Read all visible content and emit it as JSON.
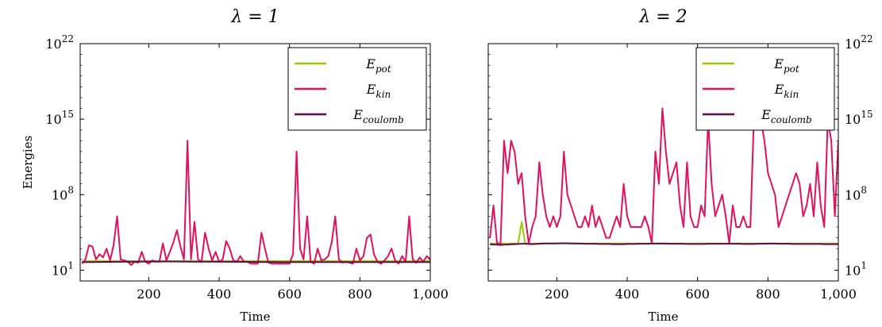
{
  "chart_data": [
    {
      "type": "line",
      "title": "λ = 1",
      "xlabel": "Time",
      "ylabel": "Energies",
      "yscale": "log",
      "xlim": [
        5,
        1000
      ],
      "ylim": [
        1,
        1e+22
      ],
      "x_ticks": [
        200,
        400,
        600,
        800,
        1000
      ],
      "x_tick_labels": [
        "200",
        "400",
        "600",
        "800",
        "1,000"
      ],
      "y_ticks": [
        10,
        100000000.0,
        1000000000000000.0,
        1e+22
      ],
      "y_tick_labels": [
        {
          "base": "10",
          "exp": "1"
        },
        {
          "base": "10",
          "exp": "8"
        },
        {
          "base": "10",
          "exp": "15"
        },
        {
          "base": "10",
          "exp": "22"
        }
      ],
      "y_axis_side": "left",
      "legend": "top-right",
      "x": [
        10,
        20,
        30,
        40,
        50,
        60,
        70,
        80,
        90,
        100,
        110,
        120,
        130,
        140,
        150,
        160,
        170,
        180,
        190,
        200,
        210,
        220,
        230,
        240,
        250,
        260,
        270,
        280,
        290,
        300,
        310,
        320,
        330,
        340,
        350,
        360,
        370,
        380,
        390,
        400,
        410,
        420,
        430,
        440,
        450,
        460,
        470,
        480,
        490,
        500,
        510,
        520,
        530,
        540,
        550,
        560,
        570,
        580,
        590,
        600,
        610,
        620,
        630,
        640,
        650,
        660,
        670,
        680,
        690,
        700,
        710,
        720,
        730,
        740,
        750,
        760,
        770,
        780,
        790,
        800,
        810,
        820,
        830,
        840,
        850,
        860,
        870,
        880,
        890,
        900,
        910,
        920,
        930,
        940,
        950,
        960,
        970,
        980,
        990,
        1000
      ],
      "series": [
        {
          "name": "E_pot",
          "legend_base": "E",
          "legend_sub": "pot",
          "color": "#99cc00",
          "values": [
            60,
            70,
            70,
            70,
            70,
            70,
            70,
            70,
            70,
            70,
            70,
            70,
            70,
            70,
            70,
            70,
            70,
            70,
            70,
            70,
            70,
            70,
            70,
            70,
            70,
            70,
            70,
            70,
            70,
            70,
            70,
            70,
            70,
            70,
            70,
            70,
            70,
            70,
            70,
            70,
            70,
            70,
            70,
            70,
            70,
            70,
            70,
            70,
            70,
            70,
            70,
            70,
            70,
            70,
            70,
            70,
            70,
            70,
            70,
            70,
            70,
            70,
            70,
            70,
            70,
            70,
            70,
            70,
            70,
            70,
            70,
            70,
            70,
            70,
            70,
            70,
            70,
            70,
            70,
            70,
            70,
            70,
            70,
            70,
            70,
            70,
            70,
            70,
            70,
            70,
            70,
            70,
            70,
            70,
            70,
            70,
            70,
            70,
            70,
            70
          ]
        },
        {
          "name": "E_kin",
          "legend_base": "E",
          "legend_sub": "kin",
          "color": "#e0115f",
          "values": [
            40,
            100,
            2000,
            1500,
            100,
            300,
            150,
            1000,
            80,
            2000,
            1000000,
            100,
            80,
            60,
            30,
            60,
            50,
            500,
            60,
            40,
            80,
            60,
            60,
            3000,
            80,
            500,
            4000,
            50000,
            1500,
            100,
            10000000000000.0,
            100,
            300000,
            100,
            60,
            30000,
            1000,
            80,
            500,
            60,
            100,
            5000,
            1000,
            80,
            60,
            200,
            60,
            60,
            40,
            40,
            40,
            30000,
            1000,
            50,
            40,
            40,
            40,
            40,
            40,
            40,
            300,
            1000000000000.0,
            1000,
            100,
            1000000,
            60,
            40,
            1000,
            80,
            100,
            200,
            4000,
            1000000,
            100,
            50,
            60,
            50,
            40,
            1000,
            80,
            200,
            10000,
            20000,
            300,
            60,
            40,
            80,
            200,
            1000,
            80,
            40,
            200,
            60,
            1000000,
            100,
            50,
            150,
            60,
            200,
            100
          ]
        },
        {
          "name": "E_coulomb",
          "legend_base": "E",
          "legend_sub": "coulomb",
          "color": "#5c0a52",
          "values": [
            55,
            55,
            56,
            56,
            57,
            57,
            58,
            58,
            58,
            59,
            59,
            59,
            60,
            60,
            60,
            61,
            61,
            62,
            62,
            62,
            63,
            63,
            63,
            64,
            64,
            64,
            63,
            63,
            62,
            62,
            62,
            61,
            61,
            61,
            61,
            60,
            60,
            60,
            60,
            60,
            60,
            59,
            59,
            59,
            59,
            59,
            58,
            58,
            58,
            58,
            58,
            57,
            57,
            57,
            57,
            57,
            56,
            56,
            56,
            56,
            56,
            56,
            55,
            55,
            55,
            55,
            55,
            55,
            55,
            55,
            55,
            55,
            55,
            55,
            55,
            55,
            55,
            55,
            55,
            55,
            55,
            55,
            55,
            55,
            55,
            55,
            55,
            55,
            55,
            55,
            55,
            55,
            55,
            55,
            55,
            55,
            55,
            55,
            55,
            55
          ]
        }
      ]
    },
    {
      "type": "line",
      "title": "λ = 2",
      "xlabel": "Time",
      "ylabel": "",
      "yscale": "log",
      "xlim": [
        5,
        1000
      ],
      "ylim": [
        1,
        1e+22
      ],
      "x_ticks": [
        200,
        400,
        600,
        800,
        1000
      ],
      "x_tick_labels": [
        "200",
        "400",
        "600",
        "800",
        "1,000"
      ],
      "y_ticks": [
        10,
        100000000.0,
        1000000000000000.0,
        1e+22
      ],
      "y_tick_labels": [
        {
          "base": "10",
          "exp": "1"
        },
        {
          "base": "10",
          "exp": "8"
        },
        {
          "base": "10",
          "exp": "15"
        },
        {
          "base": "10",
          "exp": "22"
        }
      ],
      "y_axis_side": "right",
      "legend": "top-right",
      "x": [
        10,
        20,
        30,
        40,
        50,
        60,
        70,
        80,
        90,
        100,
        110,
        120,
        130,
        140,
        150,
        160,
        170,
        180,
        190,
        200,
        210,
        220,
        230,
        240,
        250,
        260,
        270,
        280,
        290,
        300,
        310,
        320,
        330,
        340,
        350,
        360,
        370,
        380,
        390,
        400,
        410,
        420,
        430,
        440,
        450,
        460,
        470,
        480,
        490,
        500,
        510,
        520,
        530,
        540,
        550,
        560,
        570,
        580,
        590,
        600,
        610,
        620,
        630,
        640,
        650,
        660,
        670,
        680,
        690,
        700,
        710,
        720,
        730,
        740,
        750,
        760,
        770,
        780,
        790,
        800,
        810,
        820,
        830,
        840,
        850,
        860,
        870,
        880,
        890,
        900,
        910,
        920,
        930,
        940,
        950,
        960,
        970,
        980,
        990,
        1000
      ],
      "series": [
        {
          "name": "E_pot",
          "legend_base": "E",
          "legend_sub": "pot",
          "color": "#99cc00",
          "values": [
            3000,
            3000,
            3000,
            3000,
            3000,
            3000,
            3000,
            3000,
            3000,
            300000,
            3000,
            3000,
            3000,
            3000,
            3000,
            3000,
            3000,
            3000,
            3000,
            3000,
            3000,
            3000,
            3000,
            3000,
            3000,
            3000,
            3000,
            3000,
            3000,
            3000,
            3000,
            3000,
            3000,
            3000,
            3000,
            3000,
            3000,
            3000,
            3000,
            3000,
            3000,
            3000,
            3000,
            3000,
            3000,
            3000,
            3000,
            3000,
            3000,
            3000,
            3000,
            3000,
            3000,
            3000,
            3000,
            3000,
            3000,
            3000,
            3000,
            3000,
            3000,
            3000,
            3000,
            3000,
            3000,
            3000,
            3000,
            3000,
            3000,
            3000,
            3000,
            3000,
            3000,
            3000,
            3000,
            3000,
            3000,
            3000,
            3000,
            3000,
            3000,
            3000,
            3000,
            3000,
            3000,
            3000,
            3000,
            3000,
            3000,
            3000,
            3000,
            3000,
            3000,
            3000,
            3000,
            3000,
            3000,
            3000,
            3000,
            3000
          ]
        },
        {
          "name": "E_kin",
          "legend_base": "E",
          "legend_sub": "kin",
          "color": "#e0115f",
          "values": [
            10000,
            10000000.0,
            3000,
            3000,
            10000000000000.0,
            10000000000.0,
            10000000000000.0,
            1000000000000.0,
            1000000000.0,
            10000000000.0,
            1000000.0,
            3000,
            100000,
            1000000.0,
            100000000000.0,
            100000000.0,
            1000000.0,
            100000,
            1000000.0,
            100000,
            1000000.0,
            1000000000000.0,
            100000000.0,
            10000000.0,
            1000000.0,
            100000.0,
            100000.0,
            1000000.0,
            100000.0,
            10000000.0,
            100000.0,
            1000000.0,
            100000.0,
            10000.0,
            10000.0,
            100000.0,
            1000000.0,
            100000.0,
            1000000000.0,
            1000000.0,
            100000.0,
            100000.0,
            100000.0,
            100000.0,
            1000000.0,
            100000.0,
            3000,
            1000000000000.0,
            1000000000.0,
            1e+16,
            1000000000000.0,
            1000000000.0,
            10000000000.0,
            100000000000.0,
            10000000.0,
            100000.0,
            100000000000.0,
            1000000.0,
            100000.0,
            100000.0,
            10000000.0,
            1000000.0,
            1000000000000000.0,
            1000000000.0,
            1000000.0,
            10000000.0,
            100000000.0,
            1000000.0,
            3000,
            10000000.0,
            100000.0,
            100000.0,
            1000000.0,
            100000.0,
            100000.0,
            1000000000000000.0,
            100000000000000.0,
            1000000000000000.0,
            10000000000000.0,
            10000000000.0,
            1000000000.0,
            100000000.0,
            100000.0,
            1000000.0,
            10000000.0,
            100000000.0,
            1000000000.0,
            10000000000.0,
            1000000000.0,
            1000000.0,
            10000000.0,
            1000000000.0,
            1000000.0,
            100000000000.0,
            10000000.0,
            100000.0,
            1000000000000000.0,
            10000000000000.0,
            1000000.0,
            10000000000000.0
          ]
        },
        {
          "name": "E_coulomb",
          "legend_base": "E",
          "legend_sub": "coulomb",
          "color": "#5c0a52",
          "values": [
            2500,
            2400,
            2300,
            2200,
            2300,
            2400,
            2500,
            2600,
            2700,
            2800,
            2800,
            2700,
            2600,
            2700,
            2800,
            2900,
            3000,
            3000,
            3000,
            3000,
            3100,
            3100,
            3100,
            3000,
            3000,
            2900,
            2900,
            2800,
            2800,
            2800,
            2800,
            2700,
            2700,
            2700,
            2700,
            2600,
            2600,
            2600,
            2600,
            2700,
            2700,
            2700,
            2800,
            2800,
            2800,
            2800,
            2900,
            2900,
            2900,
            2900,
            2900,
            2800,
            2800,
            2800,
            2800,
            2800,
            2700,
            2700,
            2700,
            2700,
            2700,
            2700,
            2800,
            2800,
            2800,
            2800,
            2800,
            2800,
            2800,
            2800,
            2800,
            2800,
            2700,
            2700,
            2700,
            2700,
            2800,
            2800,
            2800,
            2900,
            2900,
            2900,
            2800,
            2800,
            2800,
            2800,
            2700,
            2700,
            2700,
            2700,
            2700,
            2700,
            2700,
            2700,
            2700,
            2600,
            2600,
            2600,
            2600,
            2600
          ]
        }
      ]
    }
  ]
}
